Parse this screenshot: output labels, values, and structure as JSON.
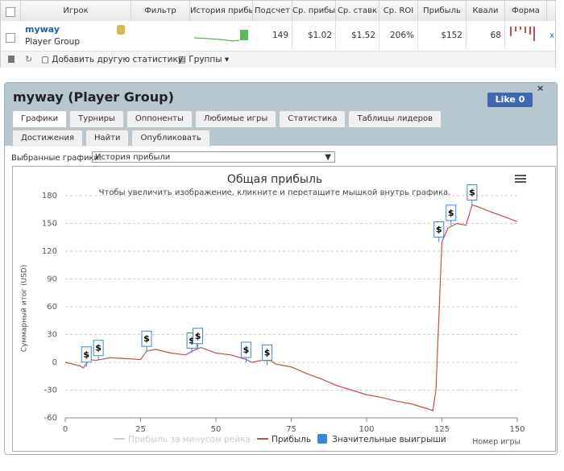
{
  "table": {
    "headers": [
      "Игрок",
      "Фильтр",
      "История прибы",
      "Подсчет",
      "Ср. прибы",
      "Ср. ставк",
      "Ср. ROI",
      "Прибыль",
      "Квали",
      "Форма"
    ],
    "row": {
      "player": "myway",
      "group": "Player Group",
      "cells": [
        "149",
        "$1.02",
        "$1.52",
        "206%",
        "$152",
        "68"
      ]
    }
  },
  "toolbar": {
    "add": "Добавить другую статистику",
    "groups": "Группы"
  },
  "panel": {
    "title": "myway (Player Group)",
    "like": "Like 0",
    "tabs": [
      "Графики",
      "Турниры",
      "Оппоненты",
      "Любимые игры",
      "Статистика",
      "Таблицы лидеров",
      "Достижения",
      "Найти",
      "Опубликовать"
    ],
    "select_label": "Выбранные графики:",
    "select_value": "История прибыли"
  },
  "chart_data": {
    "type": "line",
    "title": "Общая прибыль",
    "subtitle": "Чтобы увеличить изображение, кликните и перетащите мышкой внутрь графика.",
    "ylabel": "Суммарный итог (USD)",
    "xlabel": "Номер игры",
    "xlim": [
      0,
      150
    ],
    "xticks": [
      0,
      25,
      50,
      75,
      100,
      125,
      150
    ],
    "ylim": [
      -60,
      180
    ],
    "yticks": [
      -60,
      -30,
      0,
      30,
      60,
      90,
      120,
      150,
      180
    ],
    "grid": true,
    "hidden_series": [
      {
        "name": "Прибыль за минусом рейка",
        "color": "#cccccc"
      }
    ],
    "series": [
      {
        "name": "Прибыль",
        "color": "#c0504d",
        "x": [
          0,
          5,
          6,
          8,
          10,
          15,
          20,
          25,
          27,
          30,
          35,
          40,
          42,
          45,
          50,
          55,
          60,
          62,
          65,
          68,
          70,
          75,
          80,
          85,
          90,
          95,
          100,
          105,
          110,
          115,
          120,
          122,
          123,
          125,
          127,
          130,
          133,
          135,
          137,
          140,
          145,
          150
        ],
        "values": [
          0,
          -4,
          -6,
          3,
          2,
          5,
          4,
          3,
          12,
          14,
          10,
          8,
          12,
          16,
          10,
          8,
          3,
          0,
          2,
          2,
          -2,
          -5,
          -12,
          -18,
          -25,
          -30,
          -35,
          -38,
          -42,
          -45,
          -50,
          -52,
          -30,
          130,
          145,
          150,
          148,
          170,
          168,
          164,
          158,
          152
        ]
      },
      {
        "name": "Значительные выигрыши",
        "color": "#3d85d6",
        "marker_label": "$",
        "x": [
          7,
          11,
          27,
          42,
          44,
          60,
          67,
          124,
          128,
          135
        ],
        "values": [
          -5,
          2,
          12,
          10,
          15,
          0,
          -3,
          130,
          148,
          170
        ]
      }
    ]
  }
}
